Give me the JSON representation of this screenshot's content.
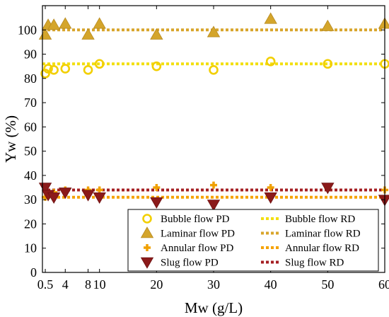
{
  "chart_data": {
    "type": "scatter",
    "xlabel": "Mw (g/L)",
    "ylabel": "Yw (%)",
    "xlim": [
      0,
      60
    ],
    "ylim": [
      0,
      110
    ],
    "x_ticks": [
      0.5,
      4,
      8,
      10,
      20,
      30,
      40,
      50,
      60
    ],
    "x_tick_labels": [
      "0.5",
      "4",
      "8",
      "10",
      "20",
      "30",
      "40",
      "50",
      "60"
    ],
    "y_ticks": [
      0,
      10,
      20,
      30,
      40,
      50,
      60,
      70,
      80,
      90,
      100
    ],
    "y_tick_labels": [
      "0",
      "10",
      "20",
      "30",
      "40",
      "50",
      "60",
      "70",
      "80",
      "90",
      "100"
    ],
    "grid": false,
    "legend_position": "bottom-right",
    "series": [
      {
        "name": "Bubble flow PD",
        "marker": "circle",
        "color": "#F2CF00",
        "x": [
          0.5,
          1,
          2,
          4,
          8,
          10,
          20,
          30,
          40,
          50,
          60
        ],
        "y": [
          82,
          84,
          83.5,
          84,
          83.5,
          86,
          85,
          83.5,
          87,
          86,
          86
        ]
      },
      {
        "name": "Laminar flow PD",
        "marker": "triangle-up",
        "color": "#D4A52B",
        "x": [
          0.5,
          1,
          2,
          4,
          8,
          10,
          20,
          30,
          40,
          50,
          60
        ],
        "y": [
          98,
          102,
          102,
          102.5,
          98,
          102.5,
          98,
          99,
          104.5,
          101.5,
          102.5
        ]
      },
      {
        "name": "Annular flow PD",
        "marker": "plus",
        "color": "#F0A000",
        "x": [
          0.5,
          1,
          2,
          4,
          8,
          10,
          20,
          30,
          40,
          50,
          60
        ],
        "y": [
          31,
          32,
          33,
          34,
          34,
          34,
          35,
          36,
          35,
          35,
          34
        ]
      },
      {
        "name": "Slug flow PD",
        "marker": "triangle-down",
        "color": "#8B1A1A",
        "x": [
          0.5,
          1,
          2,
          4,
          8,
          10,
          20,
          30,
          40,
          50,
          60
        ],
        "y": [
          35,
          32,
          31,
          33,
          32,
          31,
          29,
          28,
          31,
          35,
          30
        ]
      },
      {
        "name": "Bubble flow RD",
        "line": "dotted",
        "color": "#F2DF10",
        "x": [
          0,
          60
        ],
        "y": [
          86,
          86
        ]
      },
      {
        "name": "Laminar flow RD",
        "line": "dotted",
        "color": "#D8A52B",
        "x": [
          0,
          60
        ],
        "y": [
          100,
          100
        ]
      },
      {
        "name": "Annular flow RD",
        "line": "dotted",
        "color": "#F5A200",
        "x": [
          0,
          60
        ],
        "y": [
          31,
          31
        ]
      },
      {
        "name": "Slug flow RD",
        "line": "dotted",
        "color": "#A41E22",
        "x": [
          0,
          60
        ],
        "y": [
          34,
          34
        ]
      }
    ],
    "legend": {
      "columns": [
        [
          "Bubble flow PD",
          "Laminar flow PD",
          "Annular flow PD",
          "Slug flow PD"
        ],
        [
          "Bubble flow RD",
          "Laminar flow RD",
          "Annular flow RD",
          "Slug flow RD"
        ]
      ]
    }
  }
}
